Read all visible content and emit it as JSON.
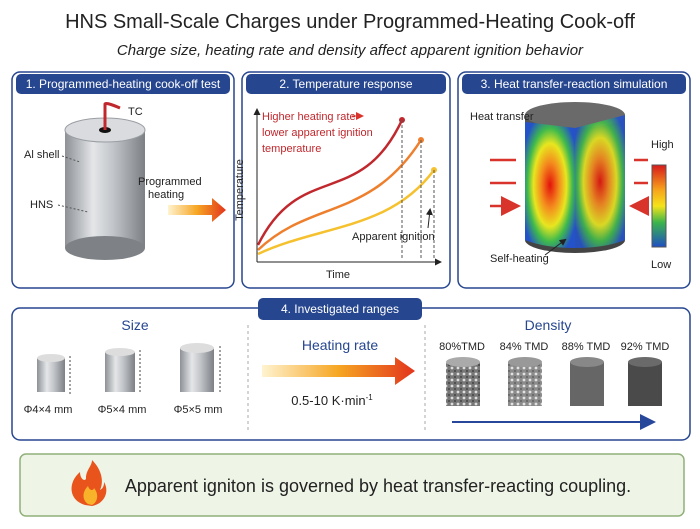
{
  "header": {
    "title": "HNS Small-Scale Charges under Programmed-Heating Cook-off",
    "subtitle": "Charge size, heating rate and density affect apparent ignition behavior"
  },
  "panel1": {
    "title": "1. Programmed-heating cook-off test",
    "tc": "TC",
    "shell": "Al shell",
    "charge": "HNS",
    "heating": [
      "Programmed",
      "heating"
    ]
  },
  "panel2": {
    "title": "2. Temperature response",
    "annotation": [
      "Higher heating rate",
      "lower apparent ignition",
      "temperature"
    ],
    "y_label": "Temperature",
    "x_label": "Time",
    "ignition": "Apparent ignition"
  },
  "panel3": {
    "title": "3. Heat transfer-reaction simulation",
    "heat_transfer": "Heat transfer",
    "self_heating": "Self-heating",
    "high": "High",
    "low": "Low"
  },
  "panel4": {
    "title": "4. Investigated ranges",
    "size_title": "Size",
    "sizes": [
      "Φ4×4 mm",
      "Φ5×4 mm",
      "Φ5×5 mm"
    ],
    "rate_title": "Heating rate",
    "rate": {
      "text": "0.5-10 K·min",
      "superscript": "-1"
    },
    "density_title": "Density",
    "densities": [
      "80%TMD",
      "84% TMD",
      "88% TMD",
      "92% TMD"
    ]
  },
  "conclusion": "Apparent igniton is governed by heat transfer-reacting coupling."
}
